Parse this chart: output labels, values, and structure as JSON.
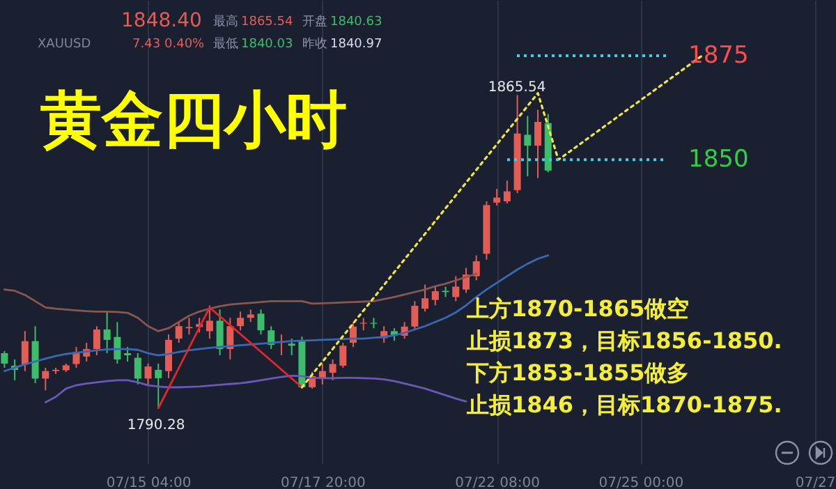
{
  "chart_data": {
    "type": "candlestick",
    "title": "黄金四小时",
    "categories": [
      null,
      null,
      null,
      null,
      null,
      null,
      null,
      null,
      null,
      null,
      null,
      null,
      null,
      null,
      "07/15 04:00",
      null,
      null,
      null,
      null,
      null,
      null,
      null,
      null,
      null,
      null,
      null,
      null,
      null,
      null,
      null,
      null,
      "07/17 20:00",
      null,
      null,
      null,
      null,
      null,
      null,
      null,
      null,
      null,
      null,
      null,
      null,
      null,
      null,
      null,
      null,
      "07/22 08:00",
      null,
      null,
      null,
      null,
      null,
      null,
      null,
      null,
      null,
      null,
      null,
      null,
      null,
      "07/25 00:00",
      null,
      null,
      null,
      null,
      null,
      null,
      null,
      null,
      null,
      null,
      null,
      null,
      null,
      null,
      null,
      null,
      "07/27"
    ],
    "ohlc": [
      [
        1803.5,
        1804,
        1800,
        1801.0
      ],
      [
        1800.5,
        1802,
        1797,
        1799.5
      ],
      [
        1800.8,
        1808.8,
        1799.2,
        1806.4
      ],
      [
        1806.4,
        1810,
        1796.3,
        1797.4
      ],
      [
        1797.4,
        1800,
        1794.6,
        1799.2
      ],
      [
        1799.2,
        1800,
        1798.5,
        1799.5
      ],
      [
        1799.4,
        1801,
        1799,
        1800.6
      ],
      [
        1800.9,
        1805,
        1800,
        1803.8
      ],
      [
        1802.7,
        1806,
        1801.5,
        1804.5
      ],
      [
        1804.5,
        1810,
        1803,
        1809.2
      ],
      [
        1809.2,
        1813.4,
        1803.5,
        1806.7
      ],
      [
        1807.4,
        1811,
        1801,
        1802
      ],
      [
        1803.5,
        1805,
        1801.5,
        1803
      ],
      [
        1802.4,
        1803.5,
        1796,
        1797.4
      ],
      [
        1797.4,
        1801,
        1796,
        1800.3
      ],
      [
        1799.5,
        1801,
        1790.28,
        1797.5
      ],
      [
        1799.2,
        1808,
        1797.5,
        1806.7
      ],
      [
        1807,
        1811,
        1806,
        1810
      ],
      [
        1809.5,
        1812,
        1808,
        1809.8
      ],
      [
        1809.8,
        1812,
        1808.5,
        1810.5
      ],
      [
        1808.8,
        1815,
        1807,
        1811.3
      ],
      [
        1811.3,
        1814,
        1803,
        1804.5
      ],
      [
        1804.5,
        1812,
        1802,
        1810
      ],
      [
        1810,
        1813.5,
        1809,
        1812
      ],
      [
        1812,
        1814,
        1811,
        1812.8
      ],
      [
        1813,
        1814,
        1808,
        1809
      ],
      [
        1809,
        1810,
        1804.5,
        1805.5
      ],
      [
        1806,
        1808,
        1803,
        1806.2
      ],
      [
        1805.8,
        1807,
        1803,
        1805.3
      ],
      [
        1806.4,
        1807.5,
        1795,
        1795.3
      ],
      [
        1795.3,
        1799,
        1795,
        1798
      ],
      [
        1797.4,
        1801,
        1796,
        1799.2
      ],
      [
        1798.8,
        1802,
        1797,
        1800.9
      ],
      [
        1800.5,
        1806,
        1800,
        1805.3
      ],
      [
        1806,
        1811,
        1805,
        1809.9
      ],
      [
        1810.6,
        1812,
        1809,
        1810.8
      ],
      [
        1810.8,
        1812,
        1809.5,
        1810.6
      ],
      [
        1807.1,
        1810,
        1806,
        1808.8
      ],
      [
        1808.8,
        1809.5,
        1806.5,
        1807.8
      ],
      [
        1807.7,
        1811,
        1807,
        1809.9
      ],
      [
        1809.9,
        1816,
        1809,
        1814.9
      ],
      [
        1814.2,
        1820,
        1813.5,
        1816.7
      ],
      [
        1816.3,
        1819.5,
        1815,
        1818.4
      ],
      [
        1818.5,
        1819.5,
        1817,
        1818.2
      ],
      [
        1817,
        1822,
        1816,
        1819.5
      ],
      [
        1818.8,
        1824,
        1818,
        1822.4
      ],
      [
        1822,
        1827,
        1821,
        1825.6
      ],
      [
        1827.4,
        1840,
        1826,
        1839.1
      ],
      [
        1839.7,
        1843,
        1839,
        1840.9
      ],
      [
        1840,
        1845,
        1839.5,
        1842.4
      ],
      [
        1842.7,
        1865.54,
        1842,
        1856.3
      ],
      [
        1856,
        1860.5,
        1846,
        1853.4
      ],
      [
        1853.4,
        1862,
        1845.6,
        1859.1
      ],
      [
        1858.8,
        1861,
        1847,
        1847.4
      ],
      null,
      null,
      null,
      null,
      null,
      null,
      null,
      null,
      null,
      null,
      null,
      null,
      null,
      null,
      null,
      null,
      null,
      null,
      null,
      null,
      null,
      null,
      null,
      null,
      null,
      null
    ],
    "colors": [
      "#3dbd6b",
      "#3dbd6b",
      "#e35d57",
      "#3dbd6b",
      "#e35d57",
      "#e35d57",
      "#e35d57",
      "#e35d57",
      "#e35d57",
      "#e35d57",
      "#3dbd6b",
      "#3dbd6b",
      "#3dbd6b",
      "#3dbd6b",
      "#e35d57",
      "#3dbd6b",
      "#e35d57",
      "#e35d57",
      "#e35d57",
      "#e35d57",
      "#e35d57",
      "#3dbd6b",
      "#e35d57",
      "#e35d57",
      "#e35d57",
      "#3dbd6b",
      "#3dbd6b",
      "#e35d57",
      "#3dbd6b",
      "#3dbd6b",
      "#e35d57",
      "#e35d57",
      "#e35d57",
      "#e35d57",
      "#e35d57",
      "#e35d57",
      "#3dbd6b",
      "#e35d57",
      "#3dbd6b",
      "#e35d57",
      "#e35d57",
      "#e35d57",
      "#e35d57",
      "#3dbd6b",
      "#e35d57",
      "#e35d57",
      "#e35d57",
      "#e35d57",
      "#e35d57",
      "#e35d57",
      "#e35d57",
      "#3dbd6b",
      "#e35d57",
      "#3dbd6b",
      null,
      null,
      null,
      null,
      null,
      null,
      null,
      null,
      null,
      null,
      null,
      null,
      null,
      null,
      null,
      null,
      null,
      null,
      null,
      null,
      null,
      null,
      null,
      null,
      null,
      null
    ],
    "series": [
      {
        "type": "line",
        "color": "#8a5650",
        "values": [
          1818.8,
          1818.5,
          1817.5,
          1816,
          1814.5,
          1814.2,
          1814,
          1813.8,
          1813.6,
          1813.5,
          1813.5,
          1813.4,
          1813.2,
          1812,
          1810,
          1808.8,
          1809.5,
          1811,
          1812.5,
          1813.5,
          1814.2,
          1814.8,
          1815.2,
          1815.4,
          1815.6,
          1815.8,
          1816,
          1816,
          1816,
          1816,
          1815.4,
          1815.5,
          1815.6,
          1815.7,
          1815.8,
          1815.9,
          1816,
          1816.5,
          1817,
          1817.6,
          1818.2,
          1818.8,
          1819.6,
          1820.2,
          1821,
          1821.8,
          1822.6,
          null,
          null,
          null,
          null,
          null,
          null,
          null,
          null,
          null,
          null,
          null,
          null,
          null,
          null,
          null,
          null,
          null,
          null,
          null,
          null,
          null,
          null,
          null,
          null,
          null,
          null,
          null,
          null,
          null,
          null,
          null,
          null,
          null
        ]
      },
      {
        "type": "line",
        "color": "#3a68b0",
        "values": [
          1799.2,
          1800,
          1800.8,
          1801.5,
          1802.2,
          1802.8,
          1803.3,
          1803.6,
          1803.9,
          1804.2,
          1804.4,
          1804.5,
          1804.5,
          1804.3,
          1803.5,
          1803,
          1803.3,
          1803.8,
          1804.2,
          1804.5,
          1804.8,
          1805,
          1805.2,
          1805.4,
          1805.6,
          1805.8,
          1806,
          1806.2,
          1806.4,
          1806.5,
          1806.6,
          1806.7,
          1806.8,
          1806.9,
          1807,
          1807,
          1807.2,
          1807.4,
          1807.8,
          1808.4,
          1809.2,
          1810,
          1811,
          1812,
          1813.3,
          1815,
          1817,
          1818.8,
          1820.4,
          1822,
          1823.6,
          1825,
          1826.2,
          1827,
          null,
          null,
          null,
          null,
          null,
          null,
          null,
          null,
          null,
          null,
          null,
          null,
          null,
          null,
          null,
          null,
          null,
          null,
          null,
          null,
          null,
          null,
          null,
          null,
          null,
          null
        ]
      },
      {
        "type": "line",
        "color": "#6a58b8",
        "values": [
          null,
          null,
          null,
          null,
          1791.7,
          1793,
          1795,
          1795.8,
          1796.2,
          1796.5,
          1796.8,
          1797,
          1797,
          1796.5,
          1795.8,
          1795.5,
          1795.3,
          1795.3,
          1795.4,
          1795.5,
          1795.7,
          1795.9,
          1796.1,
          1796.3,
          1796.6,
          1797,
          1797.4,
          1797.8,
          1798.1,
          1798,
          1797.6,
          1797.5,
          1797.5,
          1797.6,
          1797.6,
          1797.5,
          1797.4,
          1797.2,
          1796.8,
          1796.2,
          1795.6,
          1795,
          1794.2,
          1793.4,
          1792.6,
          1791.9,
          null,
          null,
          null,
          null,
          null,
          null,
          null,
          null,
          null,
          null,
          null,
          null,
          null,
          null,
          null,
          null,
          null,
          null,
          null,
          null,
          null,
          null,
          null,
          null,
          null,
          null,
          null,
          null,
          null,
          null,
          null,
          null,
          null,
          null
        ]
      },
      {
        "type": "line",
        "color": "#e3262b",
        "values": [
          null,
          null,
          null,
          null,
          null,
          null,
          null,
          null,
          null,
          null,
          null,
          null,
          null,
          null,
          null,
          1790.28,
          null,
          null,
          null,
          null,
          1814.5,
          null,
          null,
          null,
          null,
          null,
          null,
          null,
          null,
          1795.3,
          null,
          null,
          null,
          null,
          null,
          null,
          null,
          null,
          null,
          null,
          null,
          null,
          null,
          null,
          null,
          null,
          null,
          null,
          null,
          null,
          null,
          null,
          null,
          null,
          null,
          null,
          null,
          null,
          null,
          null,
          null,
          null,
          null,
          null,
          null,
          null,
          null,
          null,
          null,
          null,
          null,
          null,
          null,
          null,
          null,
          null,
          null,
          null,
          null,
          null
        ]
      },
      {
        "type": "line",
        "color": "#f2e640",
        "line_style": "dotted",
        "values": [
          null,
          null,
          null,
          null,
          null,
          null,
          null,
          null,
          null,
          null,
          null,
          null,
          null,
          null,
          null,
          null,
          null,
          null,
          null,
          null,
          null,
          null,
          null,
          null,
          null,
          null,
          null,
          null,
          null,
          1795.3,
          null,
          null,
          null,
          null,
          null,
          null,
          null,
          null,
          null,
          null,
          null,
          null,
          null,
          null,
          null,
          null,
          null,
          null,
          null,
          null,
          null,
          null,
          1866,
          null,
          1850,
          null,
          null,
          null,
          null,
          null,
          null,
          null,
          null,
          null,
          null,
          null,
          null,
          null,
          1875,
          null,
          null,
          null,
          null,
          null,
          null,
          null,
          null,
          null,
          null,
          null
        ]
      }
    ],
    "tick_labels": "x",
    "ref_lines": [
      {
        "axis": "y",
        "value": 1875,
        "label": "1875",
        "color": "#3fd0e8",
        "line_style": "dotted"
      },
      {
        "axis": "y",
        "value": 1850,
        "label": "1850",
        "color": "#3fd0e8",
        "line_style": "dotted"
      }
    ],
    "annotations": [
      "XAUUSD",
      "1848.40",
      "7.43",
      "0.40%",
      "最高",
      "1865.54",
      "开盘",
      "1840.63",
      "最低",
      "1840.03",
      "昨收",
      "1840.97",
      "上方1870-1865做空",
      "止损1873，目标1856-1850.",
      "下方1853-1855做多",
      "止损1846，目标1870-1875.",
      {
        "text": "1865.54",
        "y": 1865.54
      },
      {
        "text": "1790.28",
        "y": 1790.28
      }
    ],
    "grid": "x"
  }
}
